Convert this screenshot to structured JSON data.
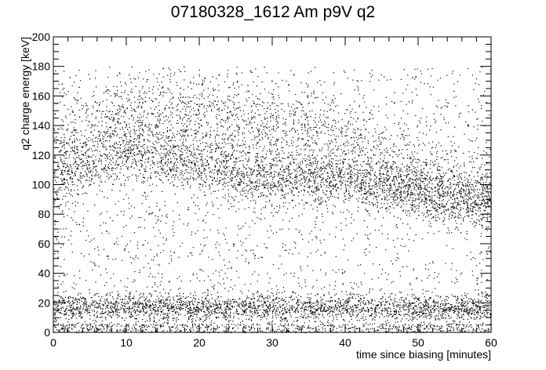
{
  "chart_data": {
    "type": "scatter",
    "title": "07180328_1612 Am p9V q2",
    "xlabel": "time since biasing [minutes]",
    "ylabel": "q2 charge energy [keV]",
    "xlim": [
      0,
      60
    ],
    "ylim": [
      0,
      200
    ],
    "x_ticks": [
      0,
      10,
      20,
      30,
      40,
      50,
      60
    ],
    "y_ticks": [
      0,
      20,
      40,
      60,
      80,
      100,
      120,
      140,
      160,
      180,
      200
    ],
    "grid": false,
    "legend": "none",
    "marker_color": "#000000",
    "upper_cutoff_keV": 180,
    "bands": [
      {
        "feature": "low-energy band",
        "y_range_keV": [
          8,
          26
        ],
        "x_range_min": [
          0,
          60
        ],
        "density": "high"
      },
      {
        "feature": "noise near zero",
        "y_range_keV": [
          0,
          6
        ],
        "x_range_min": [
          0,
          60
        ],
        "density": "medium"
      },
      {
        "feature": "Am peak (drifting)",
        "points": [
          [
            0.5,
            100
          ],
          [
            3,
            108
          ],
          [
            6,
            116
          ],
          [
            10,
            121
          ],
          [
            15,
            118
          ],
          [
            20,
            114
          ],
          [
            25,
            108
          ],
          [
            30,
            106
          ],
          [
            35,
            106
          ],
          [
            40,
            103
          ],
          [
            45,
            100
          ],
          [
            50,
            96
          ],
          [
            55,
            90
          ],
          [
            60,
            87
          ]
        ],
        "density": "high"
      },
      {
        "feature": "upper diffuse arc",
        "points": [
          [
            0.5,
            112
          ],
          [
            3,
            128
          ],
          [
            6,
            140
          ],
          [
            10,
            146
          ],
          [
            15,
            148
          ],
          [
            20,
            146
          ],
          [
            25,
            142
          ],
          [
            30,
            138
          ],
          [
            35,
            136
          ],
          [
            38,
            132
          ],
          [
            42,
            122
          ],
          [
            46,
            112
          ],
          [
            50,
            104
          ],
          [
            55,
            100
          ],
          [
            60,
            97
          ]
        ],
        "density": "medium"
      }
    ]
  }
}
